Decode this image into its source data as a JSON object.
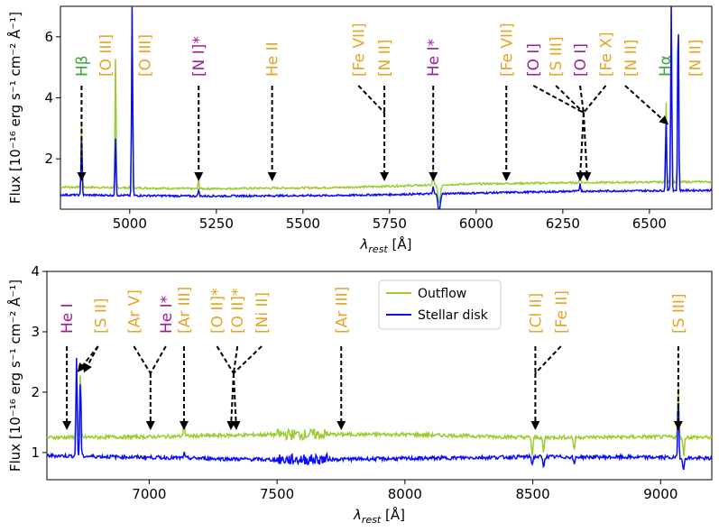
{
  "colors": {
    "outflow": "#9acd32",
    "stellar": "#0a0aff",
    "label_orange": "#e8a323",
    "label_purple": "#9b1f9b",
    "label_green": "#3aa63a"
  },
  "chart_data": [
    {
      "type": "line",
      "xlabel_base": "λ",
      "xlabel_sub": "rest",
      "xlabel_unit": " [Å]",
      "ylabel": "Flux [10⁻¹⁶ erg s⁻¹ cm⁻² Å⁻¹]",
      "xlim": [
        4800,
        6680
      ],
      "ylim": [
        0.35,
        7.0
      ],
      "xticks": [
        5000,
        5250,
        5500,
        5750,
        6000,
        6250,
        6500
      ],
      "yticks": [
        2,
        4,
        6
      ],
      "series": [
        {
          "key": "outflow",
          "continuum": [
            [
              4800,
              1.08
            ],
            [
              5200,
              1.02
            ],
            [
              5600,
              1.06
            ],
            [
              6000,
              1.18
            ],
            [
              6300,
              1.22
            ],
            [
              6680,
              1.25
            ]
          ]
        },
        {
          "key": "stellar",
          "continuum": [
            [
              4800,
              0.82
            ],
            [
              5200,
              0.78
            ],
            [
              5600,
              0.8
            ],
            [
              6000,
              0.88
            ],
            [
              6300,
              0.94
            ],
            [
              6680,
              0.97
            ]
          ]
        }
      ],
      "emission": [
        {
          "x": 4861,
          "outflow": 3.2,
          "stellar": 2.7
        },
        {
          "x": 4959,
          "outflow": 5.3,
          "stellar": 2.7
        },
        {
          "x": 5007,
          "outflow": 7.0,
          "stellar": 7.0
        },
        {
          "x": 5199,
          "outflow": 1.3,
          "stellar": 1.0
        },
        {
          "x": 5876,
          "outflow": 1.7,
          "stellar": 1.1
        },
        {
          "x": 6300,
          "outflow": 1.5,
          "stellar": 1.2
        },
        {
          "x": 6548,
          "outflow": 3.9,
          "stellar": 3.3
        },
        {
          "x": 6563,
          "outflow": 7.0,
          "stellar": 7.0
        },
        {
          "x": 6583,
          "outflow": 7.0,
          "stellar": 7.0
        }
      ],
      "absorption": [
        {
          "x": 5893,
          "outflow": 0.55,
          "stellar": 0.3
        }
      ],
      "annotations": [
        {
          "text": "Hβ",
          "color": "green",
          "text_x": 4861,
          "tips": [
            4861
          ],
          "top": 1
        },
        {
          "text": "[O III]",
          "color": "orange",
          "text_x": 4930,
          "tips": [],
          "top": 1
        },
        {
          "text": "[O III]",
          "color": "orange",
          "text_x": 5043,
          "tips": [],
          "top": 1
        },
        {
          "text": "[N I]*",
          "color": "purple",
          "text_x": 5199,
          "tips": [
            5199
          ],
          "top": 1
        },
        {
          "text": "He II",
          "color": "orange",
          "text_x": 5411,
          "tips": [
            5411
          ],
          "top": 1
        },
        {
          "text": "[Fe VII]",
          "color": "orange",
          "text_x": 5660,
          "tips": [],
          "top": 1
        },
        {
          "text": "[N II]",
          "color": "orange",
          "text_x": 5735,
          "tips": [
            5735
          ],
          "join_x": 5735,
          "from": [
            5660,
            5735
          ],
          "top": 1
        },
        {
          "text": "He I*",
          "color": "purple",
          "text_x": 5876,
          "tips": [
            5876
          ],
          "top": 1
        },
        {
          "text": "[Fe VII]",
          "color": "orange",
          "text_x": 6087,
          "tips": [
            6087
          ],
          "top": 1
        },
        {
          "text": "[O I]",
          "color": "purple",
          "text_x": 6165,
          "tips": [],
          "top": 1
        },
        {
          "text": "[S III]",
          "color": "orange",
          "text_x": 6230,
          "tips": [],
          "top": 1
        },
        {
          "text": "[O I]",
          "color": "purple",
          "text_x": 6300,
          "tips": [],
          "top": 1
        },
        {
          "text": "[Fe X]",
          "color": "orange",
          "text_x": 6374,
          "tips": [
            6300,
            6320
          ],
          "join_x": 6310,
          "from": [
            6165,
            6230,
            6300,
            6374
          ],
          "top": 1
        },
        {
          "text": "[N II]",
          "color": "orange",
          "text_x": 6445,
          "tips": [
            6535
          ],
          "diag_from": 6430,
          "top": 1
        },
        {
          "text": "Hα",
          "color": "green",
          "text_x": 6545,
          "tips": [],
          "top": 1
        },
        {
          "text": "[N II]",
          "color": "orange",
          "text_x": 6632,
          "tips": [],
          "top": 1
        }
      ]
    },
    {
      "type": "line",
      "xlabel_base": "λ",
      "xlabel_sub": "rest",
      "xlabel_unit": " [Å]",
      "ylabel": "Flux [10⁻¹⁶ erg s⁻¹ cm⁻² Å⁻¹]",
      "xlim": [
        6600,
        9200
      ],
      "ylim": [
        0.55,
        4.0
      ],
      "xticks": [
        7000,
        7500,
        8000,
        8500,
        9000
      ],
      "yticks": [
        1,
        2,
        3,
        4
      ],
      "legend": {
        "placement": "upper-center",
        "entries": [
          {
            "key": "outflow",
            "label": "Outflow"
          },
          {
            "key": "stellar",
            "label": "Stellar disk"
          }
        ]
      },
      "series": [
        {
          "key": "outflow",
          "continuum": [
            [
              6600,
              1.25
            ],
            [
              7000,
              1.26
            ],
            [
              7500,
              1.3
            ],
            [
              8000,
              1.3
            ],
            [
              8500,
              1.25
            ],
            [
              9000,
              1.26
            ],
            [
              9200,
              1.25
            ]
          ]
        },
        {
          "key": "stellar",
          "continuum": [
            [
              6600,
              0.95
            ],
            [
              7000,
              0.92
            ],
            [
              7500,
              0.88
            ],
            [
              8000,
              0.9
            ],
            [
              8500,
              0.93
            ],
            [
              9000,
              0.92
            ],
            [
              9200,
              0.9
            ]
          ]
        }
      ],
      "emission": [
        {
          "x": 6716,
          "outflow": 2.55,
          "stellar": 2.6
        },
        {
          "x": 6731,
          "outflow": 2.35,
          "stellar": 2.25
        },
        {
          "x": 7136,
          "outflow": 1.6,
          "stellar": 1.0
        },
        {
          "x": 9069,
          "outflow": 2.15,
          "stellar": 1.9
        }
      ],
      "absorption": [
        {
          "x": 8498,
          "outflow": 0.95,
          "stellar": 0.8
        },
        {
          "x": 8542,
          "outflow": 1.0,
          "stellar": 0.75
        },
        {
          "x": 8662,
          "outflow": 1.05,
          "stellar": 0.8
        },
        {
          "x": 9090,
          "outflow": 0.95,
          "stellar": 0.7
        }
      ],
      "annotations": [
        {
          "text": "He I",
          "color": "purple",
          "text_x": 6678,
          "tips": [
            6678
          ],
          "top": 1
        },
        {
          "text": "[S II]",
          "color": "orange",
          "text_x": 6810,
          "tips": [
            6716,
            6738
          ],
          "diag_from": 6800,
          "top": 1
        },
        {
          "text": "[Ar V]",
          "color": "orange",
          "text_x": 6940,
          "tips": [],
          "top": 1
        },
        {
          "text": "He I*",
          "color": "purple",
          "text_x": 7065,
          "tips": [
            7005
          ],
          "join_x": 7005,
          "from": [
            6940,
            7065
          ],
          "top": 1
        },
        {
          "text": "[Ar III]",
          "color": "orange",
          "text_x": 7136,
          "tips": [
            7136
          ],
          "top": 1
        },
        {
          "text": "[O II]*",
          "color": "orange",
          "text_x": 7265,
          "tips": [],
          "top": 1
        },
        {
          "text": "[O II]*",
          "color": "orange",
          "text_x": 7345,
          "tips": [
            7320,
            7340
          ],
          "join_x": 7330,
          "from": [
            7265,
            7345,
            7440
          ],
          "top": 1
        },
        {
          "text": "[Ni II]",
          "color": "orange",
          "text_x": 7440,
          "tips": [],
          "top": 1
        },
        {
          "text": "[Ar III]",
          "color": "orange",
          "text_x": 7751,
          "tips": [
            7751
          ],
          "top": 1
        },
        {
          "text": "[Cl II]",
          "color": "orange",
          "text_x": 8510,
          "tips": [
            8510
          ],
          "join_x": 8510,
          "from": [
            8510,
            8610
          ],
          "top": 1
        },
        {
          "text": "[Fe II]",
          "color": "orange",
          "text_x": 8610,
          "tips": [],
          "top": 1
        },
        {
          "text": "[S III]",
          "color": "orange",
          "text_x": 9069,
          "tips": [
            9069
          ],
          "top": 1
        }
      ]
    }
  ]
}
